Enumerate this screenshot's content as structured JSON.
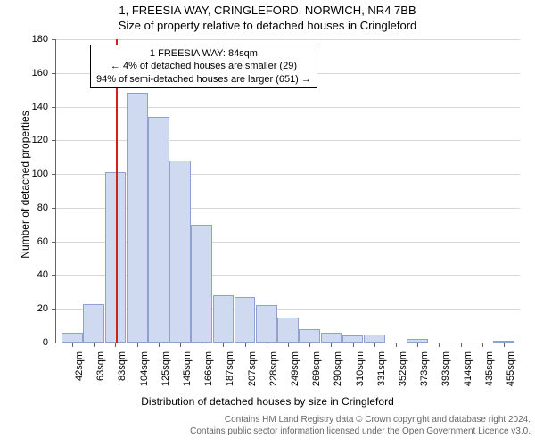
{
  "title_line1": "1, FREESIA WAY, CRINGLEFORD, NORWICH, NR4 7BB",
  "title_line2": "Size of property relative to detached houses in Cringleford",
  "y_axis_label": "Number of detached properties",
  "x_axis_label": "Distribution of detached houses by size in Cringleford",
  "chart": {
    "type": "histogram",
    "ylim": [
      0,
      180
    ],
    "ytick_step": 20,
    "bar_fill": "#cfd9f0",
    "bar_stroke": "#8ea1cf",
    "grid_color": "#d7d7d7",
    "background_color": "#ffffff",
    "marker_color": "#d02020",
    "marker_width": 2,
    "marker_x_value": 84,
    "x_categories": [
      "42sqm",
      "63sqm",
      "83sqm",
      "104sqm",
      "125sqm",
      "145sqm",
      "166sqm",
      "187sqm",
      "207sqm",
      "228sqm",
      "249sqm",
      "269sqm",
      "290sqm",
      "310sqm",
      "331sqm",
      "352sqm",
      "373sqm",
      "393sqm",
      "414sqm",
      "435sqm",
      "455sqm"
    ],
    "annotation": {
      "lines": [
        "1 FREESIA WAY: 84sqm",
        "← 4% of detached houses are smaller (29)",
        "94% of semi-detached houses are larger (651) →"
      ]
    },
    "values": [
      6,
      23,
      101,
      148,
      134,
      108,
      70,
      28,
      27,
      22,
      15,
      8,
      6,
      4,
      5,
      0,
      2,
      0,
      0,
      0,
      1
    ]
  },
  "footer": {
    "line1": "Contains HM Land Registry data © Crown copyright and database right 2024.",
    "line2": "Contains public sector information licensed under the Open Government Licence v3.0."
  }
}
